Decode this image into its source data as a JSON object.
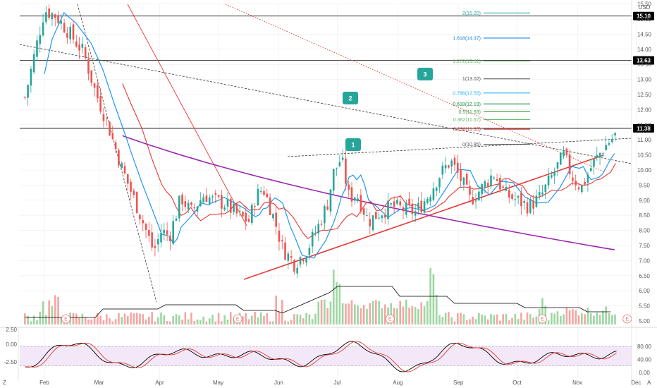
{
  "chart_data": {
    "type": "candlestick",
    "currency": "USD",
    "x_ticks": [
      "Feb",
      "Mar",
      "Apr",
      "May",
      "Jun",
      "Jul",
      "Aug",
      "Sep",
      "Oct",
      "Nov",
      "Dec"
    ],
    "price_ticks": [
      "15.50",
      "15.00",
      "14.50",
      "14.00",
      "13.50",
      "13.00",
      "12.50",
      "12.00",
      "11.50",
      "11.00",
      "10.50",
      "10.00",
      "9.50",
      "9.00",
      "8.50",
      "8.00",
      "7.50",
      "7.00",
      "6.50",
      "6.00",
      "5.50",
      "5.00"
    ],
    "price_ylim": [
      4.9,
      15.6
    ],
    "horizontal_levels": [
      {
        "label": "15.10",
        "value": 15.1
      },
      {
        "label": "13.63",
        "value": 13.63
      },
      {
        "label": "11.38",
        "value": 11.38
      }
    ],
    "fib_levels": [
      {
        "label": "2(15.20)",
        "value": 15.2,
        "color": "#26a69a"
      },
      {
        "label": "1.618(14.37)",
        "value": 14.37,
        "color": "#1e88e5"
      },
      {
        "label": "1.272(13.61)",
        "value": 13.61,
        "color": "#66bb6a"
      },
      {
        "label": "1(13.02)",
        "value": 13.02,
        "color": "#555555"
      },
      {
        "label": "0.786(12.55)",
        "value": 12.55,
        "color": "#29b6f6"
      },
      {
        "label": "0.618(12.19)",
        "value": 12.19,
        "color": "#1b8a3a"
      },
      {
        "label": "0.5(11.93)",
        "value": 11.93,
        "color": "#43a047"
      },
      {
        "label": "0.382(11.67)",
        "value": 11.67,
        "color": "#66bb6a"
      },
      {
        "label": "0.236(11.35)",
        "value": 11.35,
        "color": "#e53935"
      },
      {
        "label": "0(10.85)",
        "value": 10.85,
        "color": "#555555"
      }
    ],
    "annotations": [
      "1",
      "2",
      "3"
    ],
    "earnings_markers": [
      "E",
      "E",
      "E",
      "E",
      "E"
    ],
    "oscillator": {
      "left_ticks": [
        "2.50",
        "0.00",
        "-2.50"
      ],
      "right_ticks": [
        "80.00",
        "40.00",
        "0.00"
      ],
      "bands": [
        20,
        80
      ]
    },
    "corner_labels": {
      "left": "Z",
      "right": "A"
    },
    "colors": {
      "up": "#26a69a",
      "down": "#ef5350",
      "ma_purple": "#9c27b0",
      "ma_red": "#e53935",
      "ma_blue": "#2196f3",
      "trend_red": "#e53935",
      "grid": "#eeeeee",
      "level": "#000000"
    }
  }
}
